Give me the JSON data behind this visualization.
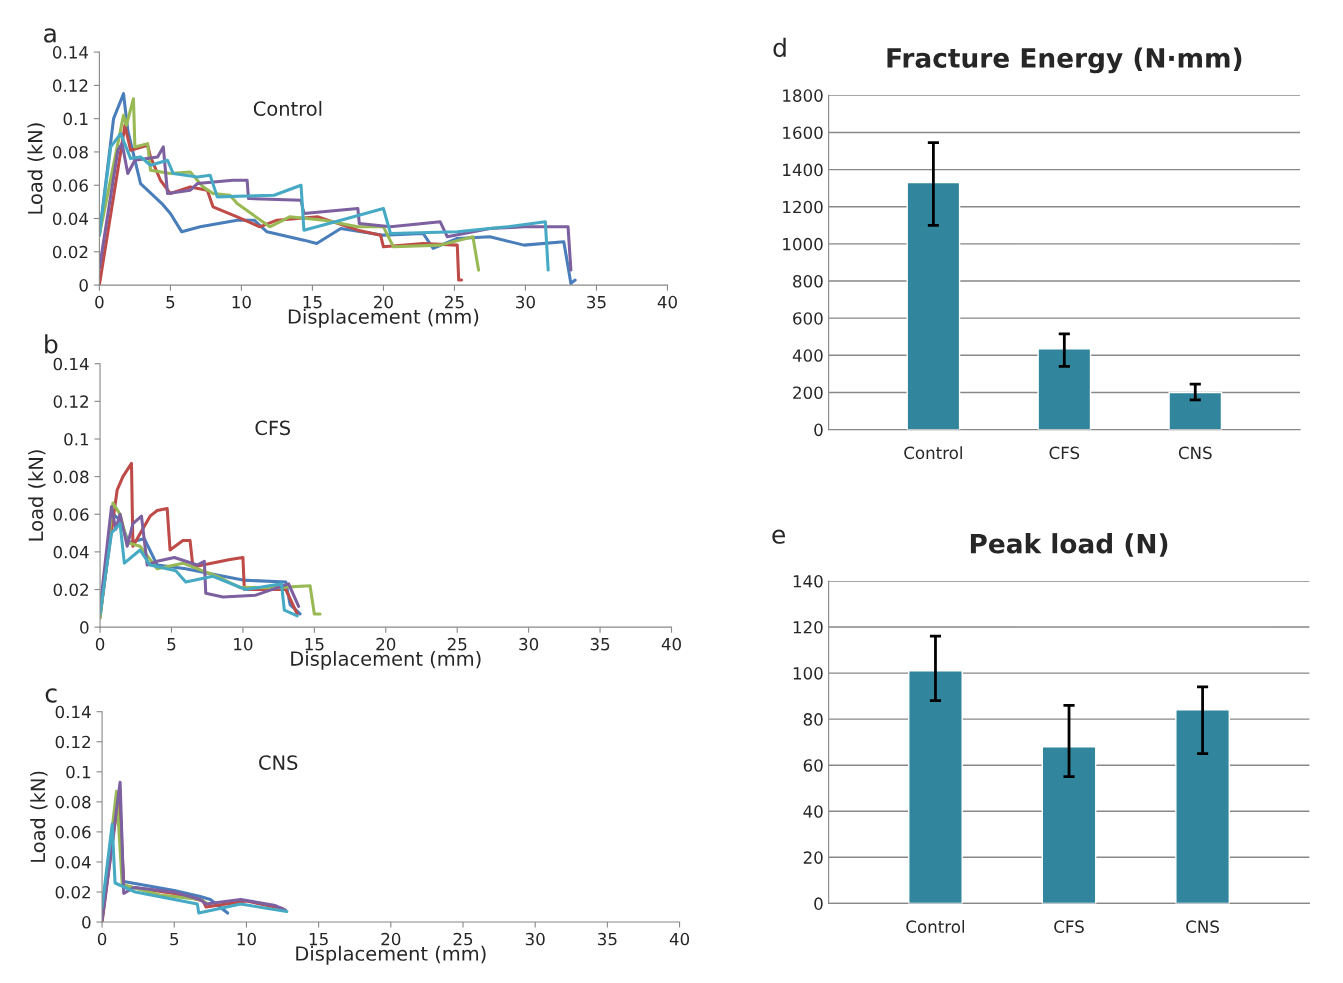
{
  "chart_data": [
    {
      "type": "line",
      "annotations": [
        "a",
        "Control"
      ],
      "xlabel": "Displacement (mm)",
      "ylabel": "Load (kN)",
      "xlim": [
        0,
        40
      ],
      "xticks": [
        0,
        5,
        10,
        15,
        20,
        25,
        30,
        35,
        40
      ],
      "ylim": [
        0,
        0.14
      ],
      "yticks": [
        0,
        0.02,
        0.04,
        0.06,
        0.08,
        0.1,
        0.12,
        0.14
      ],
      "grid": false,
      "series": [
        {
          "color": "#4a7ebb",
          "x": [
            0,
            1.0,
            1.7,
            2.0,
            2.9,
            4.4,
            5.0,
            5.8,
            7.1,
            9.7,
            10.9,
            11.8,
            14.4,
            15.3,
            17.0,
            20.0,
            22.8,
            23.5,
            25.2,
            27.5,
            29.9,
            32.7,
            33.2,
            33.5
          ],
          "values": [
            0.03,
            0.1,
            0.115,
            0.093,
            0.061,
            0.049,
            0.043,
            0.032,
            0.035,
            0.039,
            0.039,
            0.032,
            0.027,
            0.025,
            0.034,
            0.03,
            0.031,
            0.022,
            0.028,
            0.029,
            0.024,
            0.026,
            0.001,
            0.003
          ]
        },
        {
          "color": "#be4b48",
          "x": [
            0,
            1.8,
            2.2,
            3.4,
            3.6,
            4.3,
            5.0,
            6.4,
            7.6,
            8.0,
            9.7,
            11.3,
            12.5,
            15.4,
            18.2,
            19.8,
            20.0,
            22.8,
            25.2,
            25.3,
            25.5
          ],
          "values": [
            0,
            0.096,
            0.081,
            0.084,
            0.077,
            0.063,
            0.055,
            0.059,
            0.057,
            0.047,
            0.041,
            0.035,
            0.039,
            0.041,
            0.033,
            0.03,
            0.023,
            0.025,
            0.024,
            0.003,
            0.003
          ]
        },
        {
          "color": "#98b954",
          "x": [
            0,
            1.7,
            1.9,
            2.4,
            2.5,
            3.4,
            3.6,
            5.0,
            6.4,
            7.3,
            8.0,
            9.2,
            9.7,
            12.0,
            13.4,
            15.8,
            18.2,
            20.0,
            20.7,
            24.0,
            26.3,
            26.7
          ],
          "values": [
            0.03,
            0.102,
            0.096,
            0.112,
            0.083,
            0.085,
            0.069,
            0.067,
            0.068,
            0.059,
            0.055,
            0.054,
            0.049,
            0.035,
            0.041,
            0.039,
            0.035,
            0.035,
            0.023,
            0.024,
            0.029,
            0.009
          ]
        },
        {
          "color": "#7d60a0",
          "x": [
            0,
            1.3,
            1.6,
            2.0,
            2.5,
            4.1,
            4.5,
            4.8,
            6.4,
            6.9,
            9.4,
            10.4,
            10.5,
            14.2,
            14.4,
            18.2,
            18.3,
            20.5,
            24.0,
            24.5,
            27.5,
            29.9,
            33.0,
            33.2
          ],
          "values": [
            0.01,
            0.081,
            0.085,
            0.067,
            0.075,
            0.077,
            0.083,
            0.055,
            0.057,
            0.061,
            0.063,
            0.063,
            0.052,
            0.051,
            0.043,
            0.046,
            0.037,
            0.035,
            0.038,
            0.029,
            0.034,
            0.035,
            0.035,
            0.009
          ]
        },
        {
          "color": "#46aac5",
          "x": [
            0,
            0.8,
            1.5,
            2.2,
            2.9,
            3.6,
            4.8,
            5.2,
            6.9,
            7.8,
            8.3,
            12.3,
            14.2,
            14.4,
            17.0,
            20.0,
            20.5,
            25.2,
            28.7,
            31.4,
            31.6
          ],
          "values": [
            0.03,
            0.083,
            0.091,
            0.076,
            0.077,
            0.072,
            0.075,
            0.067,
            0.065,
            0.066,
            0.053,
            0.054,
            0.06,
            0.033,
            0.039,
            0.046,
            0.031,
            0.032,
            0.035,
            0.038,
            0.009
          ]
        }
      ]
    },
    {
      "type": "line",
      "annotations": [
        "b",
        "CFS"
      ],
      "xlabel": "Displacement (mm)",
      "ylabel": "Load (kN)",
      "xlim": [
        0,
        40
      ],
      "xticks": [
        0,
        5,
        10,
        15,
        20,
        25,
        30,
        35,
        40
      ],
      "ylim": [
        0,
        0.14
      ],
      "yticks": [
        0,
        0.02,
        0.04,
        0.06,
        0.08,
        0.1,
        0.12,
        0.14
      ],
      "grid": false,
      "series": [
        {
          "color": "#4a7ebb",
          "x": [
            0,
            0.9,
            1.4,
            2.0,
            3.1,
            4.0,
            6.0,
            8.0,
            10.0,
            13.0,
            13.3,
            14.0
          ],
          "values": [
            0.005,
            0.06,
            0.057,
            0.045,
            0.047,
            0.033,
            0.031,
            0.028,
            0.025,
            0.024,
            0.012,
            0.007
          ]
        },
        {
          "color": "#be4b48",
          "x": [
            0,
            1.2,
            1.6,
            2.2,
            2.3,
            3.5,
            4.0,
            4.7,
            4.9,
            5.8,
            6.3,
            6.5,
            9.1,
            10.0,
            10.1,
            13.0,
            13.8
          ],
          "values": [
            0.007,
            0.073,
            0.08,
            0.087,
            0.043,
            0.059,
            0.062,
            0.063,
            0.041,
            0.046,
            0.046,
            0.032,
            0.036,
            0.037,
            0.02,
            0.02,
            0.007
          ]
        },
        {
          "color": "#98b954",
          "x": [
            0,
            0.9,
            1.4,
            1.9,
            2.8,
            4.0,
            5.8,
            8.2,
            9.8,
            12.4,
            14.7,
            15.0,
            15.4
          ],
          "values": [
            0.005,
            0.066,
            0.06,
            0.045,
            0.043,
            0.031,
            0.034,
            0.027,
            0.021,
            0.021,
            0.022,
            0.007,
            0.007
          ]
        },
        {
          "color": "#7d60a0",
          "x": [
            0,
            0.8,
            1.1,
            1.4,
            1.9,
            2.3,
            2.9,
            3.3,
            4.0,
            5.2,
            6.8,
            7.3,
            7.4,
            8.6,
            10.9,
            13.2,
            13.9
          ],
          "values": [
            0.01,
            0.064,
            0.052,
            0.06,
            0.043,
            0.055,
            0.059,
            0.033,
            0.035,
            0.037,
            0.033,
            0.035,
            0.018,
            0.016,
            0.017,
            0.023,
            0.011
          ]
        },
        {
          "color": "#46aac5",
          "x": [
            0,
            0.8,
            1.4,
            1.7,
            2.8,
            3.5,
            5.3,
            6.0,
            7.9,
            10.2,
            12.7,
            12.9,
            13.8
          ],
          "values": [
            0.007,
            0.05,
            0.055,
            0.034,
            0.041,
            0.033,
            0.03,
            0.024,
            0.027,
            0.02,
            0.023,
            0.009,
            0.006
          ]
        }
      ]
    },
    {
      "type": "line",
      "annotations": [
        "c",
        "CNS"
      ],
      "xlabel": "Displacement (mm)",
      "ylabel": "Load (kN)",
      "xlim": [
        0,
        40
      ],
      "xticks": [
        0,
        5,
        10,
        15,
        20,
        25,
        30,
        35,
        40
      ],
      "ylim": [
        0,
        0.14
      ],
      "yticks": [
        0,
        0.02,
        0.04,
        0.06,
        0.08,
        0.1,
        0.12,
        0.14
      ],
      "grid": false,
      "series": [
        {
          "color": "#4a7ebb",
          "x": [
            1.1,
            1.5,
            5.0,
            6.8,
            7.5,
            8.7
          ],
          "values": [
            0.08,
            0.027,
            0.021,
            0.017,
            0.015,
            0.006
          ]
        },
        {
          "color": "#be4b48",
          "x": [
            0,
            1.2,
            1.5,
            5.0,
            7.0,
            7.2,
            10.0,
            12.5
          ],
          "values": [
            0,
            0.088,
            0.024,
            0.019,
            0.014,
            0.01,
            0.014,
            0.009
          ]
        },
        {
          "color": "#98b954",
          "x": [
            0,
            1.0,
            1.4,
            4.0,
            6.8,
            7.2
          ],
          "values": [
            0.005,
            0.087,
            0.025,
            0.018,
            0.015,
            0.013
          ]
        },
        {
          "color": "#7d60a0",
          "x": [
            0,
            1.25,
            1.5,
            2.2,
            5.0,
            6.8,
            7.2,
            9.6,
            12.0,
            12.7
          ],
          "values": [
            0.001,
            0.093,
            0.019,
            0.023,
            0.02,
            0.015,
            0.012,
            0.015,
            0.011,
            0.008
          ]
        },
        {
          "color": "#46aac5",
          "x": [
            0,
            0.7,
            0.9,
            2.3,
            5.0,
            6.6,
            6.7,
            9.6,
            12.8
          ],
          "values": [
            0.01,
            0.065,
            0.026,
            0.02,
            0.015,
            0.012,
            0.006,
            0.012,
            0.007
          ]
        }
      ]
    },
    {
      "type": "bar",
      "title": "Fracture Energy (N·mm)",
      "annotations": [
        "d"
      ],
      "categories": [
        "Control",
        "CFS",
        "CNS"
      ],
      "values": [
        1330,
        435,
        200
      ],
      "errors": [
        [
          1100,
          1545
        ],
        [
          340,
          515
        ],
        [
          160,
          245
        ]
      ],
      "color": "#31859c",
      "ylim": [
        0,
        1800
      ],
      "yticks": [
        0,
        200,
        400,
        600,
        800,
        1000,
        1200,
        1400,
        1600,
        1800
      ],
      "grid": "y"
    },
    {
      "type": "bar",
      "title": "Peak load (N)",
      "annotations": [
        "e"
      ],
      "categories": [
        "Control",
        "CFS",
        "CNS"
      ],
      "values": [
        101,
        68,
        84
      ],
      "errors": [
        [
          88,
          116
        ],
        [
          55,
          86
        ],
        [
          65,
          94
        ]
      ],
      "color": "#31859c",
      "ylim": [
        0,
        140
      ],
      "yticks": [
        0,
        20,
        40,
        60,
        80,
        100,
        120,
        140
      ],
      "grid": "y"
    }
  ]
}
